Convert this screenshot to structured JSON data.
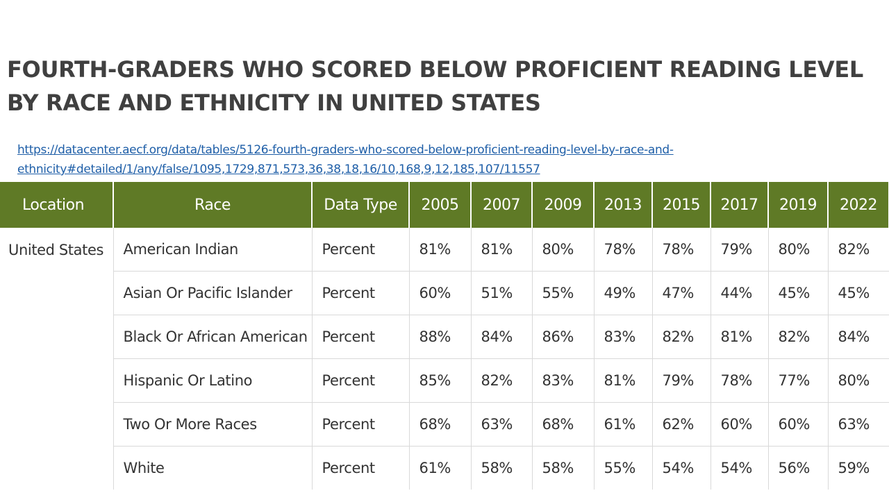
{
  "title": {
    "line1": "FOURTH-GRADERS WHO SCORED BELOW PROFICIENT READING LEVEL",
    "line2": "BY RACE AND ETHNICITY IN UNITED STATES"
  },
  "source": {
    "line1": "https://datacenter.aecf.org/data/tables/5126-fourth-graders-who-scored-below-proficient-reading-level-by-race-and-",
    "line2": "ethnicity#detailed/1/any/false/1095,1729,871,573,36,38,18,16/10,168,9,12,185,107/11557"
  },
  "colors": {
    "header_bg": "#5f7a26",
    "title_text": "#404040",
    "link": "#1f5fa8"
  },
  "table": {
    "headers": [
      "Location",
      "Race",
      "Data Type",
      "2005",
      "2007",
      "2009",
      "2013",
      "2015",
      "2017",
      "2019",
      "2022"
    ],
    "location": "United States",
    "rows": [
      {
        "race": "American Indian",
        "type": "Percent",
        "values": [
          "81%",
          "81%",
          "80%",
          "78%",
          "78%",
          "79%",
          "80%",
          "82%"
        ]
      },
      {
        "race": "Asian Or Pacific Islander",
        "type": "Percent",
        "values": [
          "60%",
          "51%",
          "55%",
          "49%",
          "47%",
          "44%",
          "45%",
          "45%"
        ]
      },
      {
        "race": "Black Or African American",
        "type": "Percent",
        "values": [
          "88%",
          "84%",
          "86%",
          "83%",
          "82%",
          "81%",
          "82%",
          "84%"
        ]
      },
      {
        "race": "Hispanic Or Latino",
        "type": "Percent",
        "values": [
          "85%",
          "82%",
          "83%",
          "81%",
          "79%",
          "78%",
          "77%",
          "80%"
        ]
      },
      {
        "race": "Two Or More Races",
        "type": "Percent",
        "values": [
          "68%",
          "63%",
          "68%",
          "61%",
          "62%",
          "60%",
          "60%",
          "63%"
        ]
      },
      {
        "race": "White",
        "type": "Percent",
        "values": [
          "61%",
          "58%",
          "58%",
          "55%",
          "54%",
          "54%",
          "56%",
          "59%"
        ]
      }
    ]
  }
}
